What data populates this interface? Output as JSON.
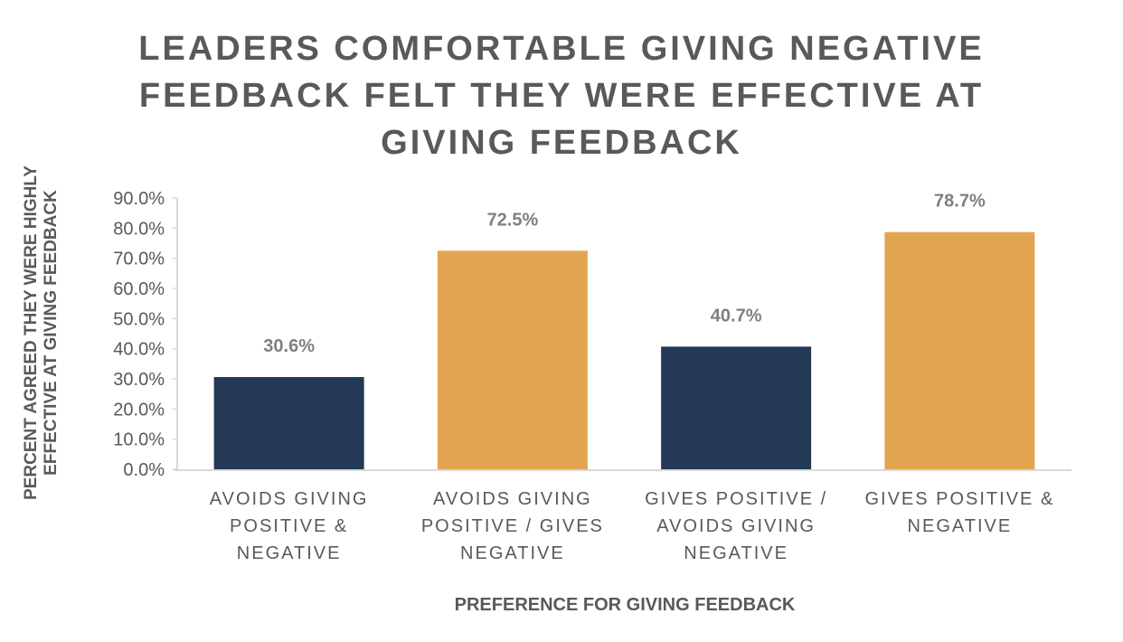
{
  "chart_data": {
    "type": "bar",
    "title": "LEADERS COMFORTABLE GIVING NEGATIVE FEEDBACK FELT THEY WERE EFFECTIVE AT GIVING FEEDBACK",
    "title_lines": [
      "LEADERS COMFORTABLE GIVING NEGATIVE",
      "FEEDBACK FELT THEY WERE EFFECTIVE AT",
      "GIVING FEEDBACK"
    ],
    "xlabel": "PREFERENCE FOR GIVING FEEDBACK",
    "ylabel": "PERCENT AGREED THEY WERE HIGHLY EFFECTIVE AT GIVING FEEDBACK",
    "ylabel_lines": [
      "PERCENT AGREED THEY WERE HIGHLY",
      "EFFECTIVE AT GIVING FEEDBACK"
    ],
    "categories": [
      "AVOIDS GIVING POSITIVE & NEGATIVE",
      "AVOIDS GIVING POSITIVE / GIVES NEGATIVE",
      "GIVES POSITIVE / AVOIDS GIVING NEGATIVE",
      "GIVES POSITIVE & NEGATIVE"
    ],
    "category_lines": [
      [
        "AVOIDS GIVING",
        "POSITIVE &",
        "NEGATIVE"
      ],
      [
        "AVOIDS GIVING",
        "POSITIVE / GIVES",
        "NEGATIVE"
      ],
      [
        "GIVES POSITIVE /",
        "AVOIDS GIVING",
        "NEGATIVE"
      ],
      [
        "GIVES POSITIVE &",
        "NEGATIVE"
      ]
    ],
    "values": [
      30.6,
      72.5,
      40.7,
      78.7
    ],
    "data_labels": [
      "30.6%",
      "72.5%",
      "40.7%",
      "78.7%"
    ],
    "bar_colors": [
      "#243956",
      "#E3A44F",
      "#243956",
      "#E3A44F"
    ],
    "ylim": [
      0,
      90
    ],
    "yticks": [
      "0.0%",
      "10.0%",
      "20.0%",
      "30.0%",
      "40.0%",
      "50.0%",
      "60.0%",
      "70.0%",
      "80.0%",
      "90.0%"
    ],
    "grid": false,
    "legend": "none"
  }
}
